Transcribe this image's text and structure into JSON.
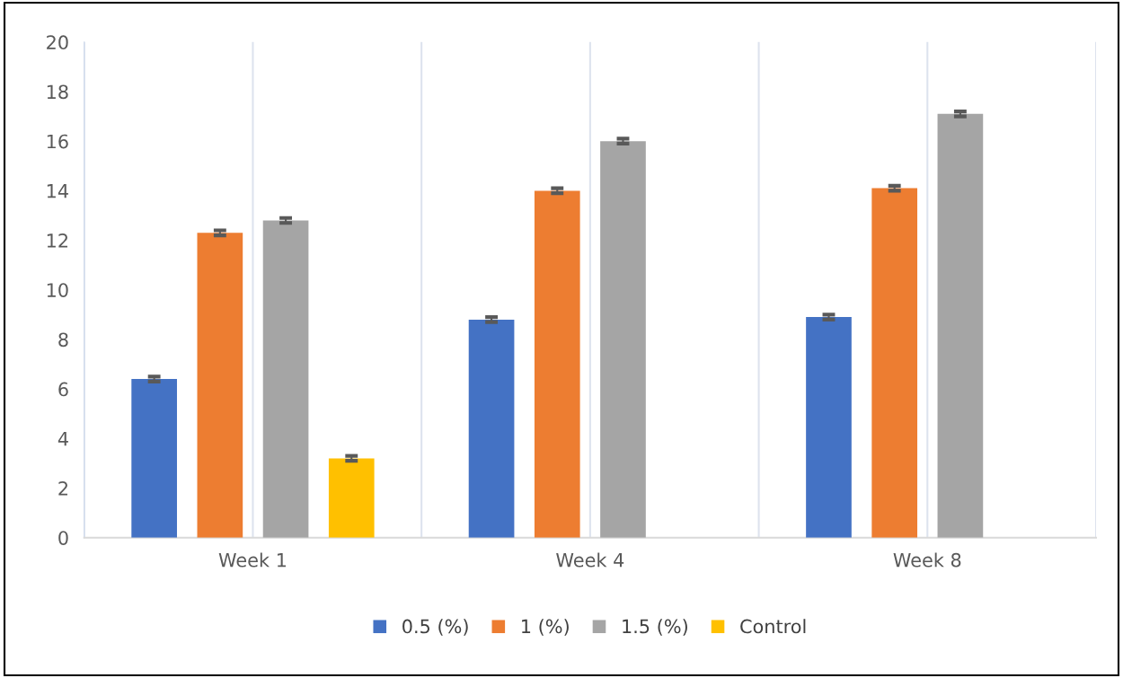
{
  "chart_data": {
    "type": "bar",
    "categories": [
      "Week 1",
      "Week 4",
      "Week 8"
    ],
    "series": [
      {
        "name": "0.5 (%)",
        "color": "#4472c4",
        "values": [
          6.4,
          8.8,
          8.9
        ],
        "errors": [
          0.1,
          0.1,
          0.1
        ]
      },
      {
        "name": "1 (%)",
        "color": "#ed7d31",
        "values": [
          12.3,
          14.0,
          14.1
        ],
        "errors": [
          0.1,
          0.1,
          0.1
        ]
      },
      {
        "name": "1.5 (%)",
        "color": "#a5a5a5",
        "values": [
          12.8,
          16.0,
          17.1
        ],
        "errors": [
          0.1,
          0.1,
          0.1
        ]
      },
      {
        "name": "Control",
        "color": "#ffc000",
        "values": [
          3.2,
          null,
          null
        ],
        "errors": [
          0.1,
          null,
          null
        ]
      }
    ],
    "ylim": [
      0,
      20
    ],
    "yticks": [
      0,
      2,
      4,
      6,
      8,
      10,
      12,
      14,
      16,
      18,
      20
    ],
    "grid": "x",
    "legend": "bottom"
  }
}
